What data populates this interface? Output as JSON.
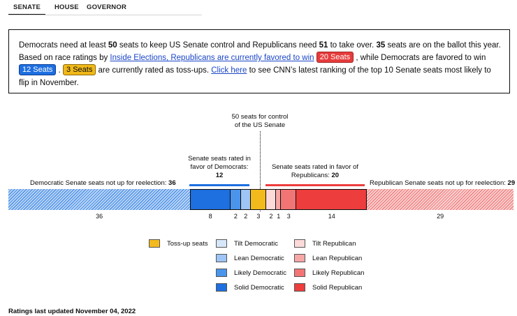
{
  "tabs": [
    {
      "label": "SENATE",
      "active": true
    },
    {
      "label": "HOUSE",
      "active": false
    },
    {
      "label": "GOVERNOR",
      "active": false
    }
  ],
  "info": {
    "p1": "Democrats need at least ",
    "dem_needed": "50",
    "p2": " seats to keep US Senate control and Republicans need ",
    "rep_needed": "51",
    "p3": " to take over. ",
    "on_ballot": "35",
    "p4": " seats are on the ballot this year. Based on race ratings by ",
    "link_text": "Inside Elections, Republicans are currently favored to win",
    "rep_badge": "20 Seats",
    "p5": " , while Democrats are favored to win ",
    "dem_badge": "12 Seats",
    "p6": " . ",
    "toss_badge": "3 Seats",
    "p7": " are currently rated as toss-ups. ",
    "click_link": "Click here",
    "p8": " to see CNN’s latest ranking of the top 10 Senate seats most likely to flip in November."
  },
  "chart": {
    "control_line1": "50 seats for control",
    "control_line2": "of the US Senate",
    "dem_favor_line1": "Senate seats rated in",
    "dem_favor_line2": "favor of Democrats:",
    "dem_favor_count": "12",
    "rep_favor_line1": "Senate seats rated in favor of",
    "rep_favor_line2": "Republicans:",
    "rep_favor_count": "20",
    "dem_not_up_label": "Democratic Senate seats not up for reelection:",
    "dem_not_up_count": "36",
    "rep_not_up_label": "Republican Senate seats not up for reelection:",
    "rep_not_up_count": "29"
  },
  "chart_data": {
    "type": "bar",
    "orientation": "horizontal-stacked",
    "total_seats": 100,
    "control_threshold": 50,
    "categories": [
      "Dem not up",
      "Solid Democratic",
      "Likely Democratic",
      "Lean Democratic",
      "Tilt Democratic",
      "Toss-up",
      "Tilt Republican",
      "Lean Republican",
      "Likely Republican",
      "Solid Republican",
      "Rep not up"
    ],
    "values": [
      36,
      8,
      2,
      2,
      0,
      3,
      2,
      1,
      3,
      14,
      29
    ],
    "number_labels": [
      "36",
      "8",
      "2",
      "2",
      "",
      "3",
      "2",
      "1",
      "3",
      "14",
      "29"
    ],
    "colors": [
      "#a8c8f2",
      "#1e6fe0",
      "#4a94ec",
      "#9ec5f5",
      "#d6e7fb",
      "#f3ba1d",
      "#fddada",
      "#f8a7a7",
      "#f27575",
      "#ee3d3d",
      "#f8b5b5"
    ]
  },
  "legend": [
    {
      "label": "Toss-up seats",
      "color": "#f3ba1d"
    },
    {
      "label": "Tilt Democratic",
      "color": "#d6e7fb"
    },
    {
      "label": "Lean Democratic",
      "color": "#9ec5f5"
    },
    {
      "label": "Likely Democratic",
      "color": "#4a94ec"
    },
    {
      "label": "Solid Democratic",
      "color": "#1e6fe0"
    },
    {
      "label": "Tilt Republican",
      "color": "#fddada"
    },
    {
      "label": "Lean Republican",
      "color": "#f8a7a7"
    },
    {
      "label": "Likely Republican",
      "color": "#f27575"
    },
    {
      "label": "Solid Republican",
      "color": "#ee3d3d"
    }
  ],
  "footer": "Ratings last updated November 04, 2022"
}
